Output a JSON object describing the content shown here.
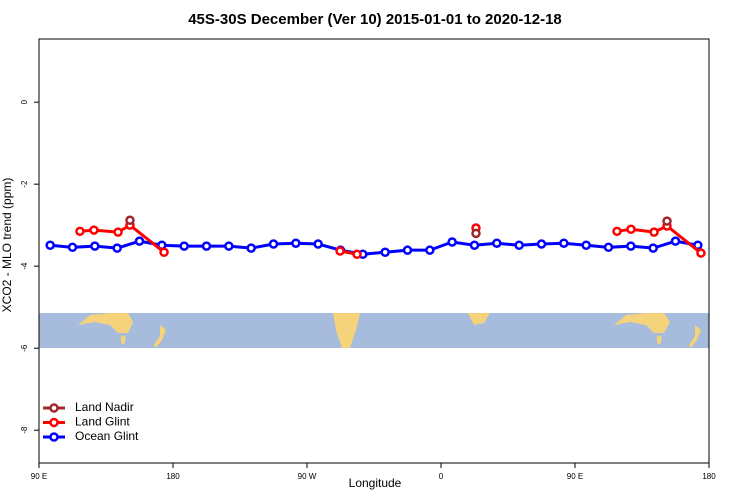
{
  "chart_data": {
    "type": "line",
    "title": "45S-30S December (Ver 10)   2015-01-01 to 2020-12-18",
    "x_label": "Longitude",
    "y_label": "XCO2 - MLO trend (ppm)",
    "xlim": [
      90,
      540
    ],
    "ylim": [
      -8.8,
      1.54
    ],
    "xticks": [
      {
        "value": 90,
        "label": "90 E"
      },
      {
        "value": 180,
        "label": "180"
      },
      {
        "value": 270,
        "label": "90 W"
      },
      {
        "value": 360,
        "label": "0"
      },
      {
        "value": 450,
        "label": "90 E"
      },
      {
        "value": 540,
        "label": "180"
      }
    ],
    "yticks": [
      0,
      -2,
      -4,
      -6,
      -8
    ],
    "legend": "bottom-left",
    "series": [
      {
        "name": "Land Nadir",
        "color": "#a0282d",
        "x": [
          151.1,
          null,
          383.5,
          null,
          511.8
        ],
        "values": [
          -2.88,
          null,
          -3.2,
          null,
          -2.9
        ]
      },
      {
        "name": "Land Glint",
        "color": "#ff0000",
        "x": [
          117.5,
          126.9,
          143.1,
          151.1,
          174.0,
          null,
          292.2,
          303.6,
          null,
          383.5,
          null,
          478.2,
          487.6,
          503.1,
          511.8,
          534.6
        ],
        "values": [
          -3.15,
          -3.12,
          -3.17,
          -3.0,
          -3.66,
          null,
          -3.63,
          -3.71,
          null,
          -3.07,
          null,
          -3.15,
          -3.1,
          -3.17,
          -3.02,
          -3.68
        ]
      },
      {
        "name": "Ocean Glint",
        "color": "#0000ff",
        "x": [
          97.5,
          112.5,
          127.5,
          142.5,
          157.5,
          172.5,
          187.5,
          202.5,
          217.5,
          232.5,
          247.5,
          262.5,
          277.5,
          292.5,
          307.5,
          322.5,
          337.5,
          352.5,
          367.5,
          382.5,
          397.5,
          412.5,
          427.5,
          442.5,
          457.5,
          472.5,
          487.5,
          502.5,
          517.5,
          532.5
        ],
        "values": [
          -3.49,
          -3.54,
          -3.51,
          -3.56,
          -3.39,
          -3.49,
          -3.51,
          -3.51,
          -3.51,
          -3.56,
          -3.46,
          -3.44,
          -3.46,
          -3.61,
          -3.71,
          -3.66,
          -3.61,
          -3.61,
          -3.41,
          -3.49,
          -3.44,
          -3.49,
          -3.46,
          -3.44,
          -3.49,
          -3.54,
          -3.51,
          -3.56,
          -3.39,
          -3.49
        ]
      }
    ]
  }
}
